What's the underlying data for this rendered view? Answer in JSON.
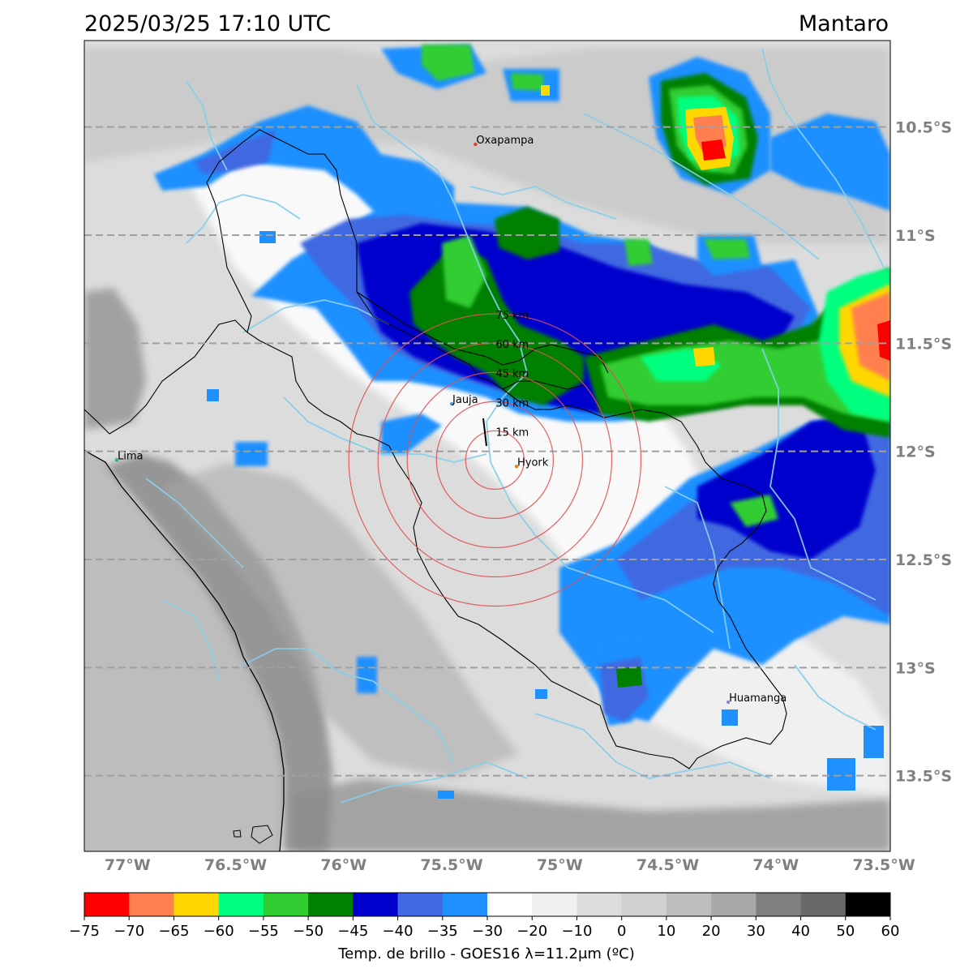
{
  "header": {
    "timestamp": "2025/03/25 17:10 UTC",
    "region": "Mantaro"
  },
  "map": {
    "lon_range": [
      -77.2,
      -73.47
    ],
    "lat_range": [
      -13.85,
      -10.1
    ],
    "lon_ticks": [
      {
        "value": -77.0,
        "label": "77°W"
      },
      {
        "value": -76.5,
        "label": "76.5°W"
      },
      {
        "value": -76.0,
        "label": "76°W"
      },
      {
        "value": -75.5,
        "label": "75.5°W"
      },
      {
        "value": -75.0,
        "label": "75°W"
      },
      {
        "value": -74.5,
        "label": "74.5°W"
      },
      {
        "value": -74.0,
        "label": "74°W"
      },
      {
        "value": -73.5,
        "label": "73.5°W"
      }
    ],
    "lat_ticks": [
      {
        "value": -10.5,
        "label": "10.5°S"
      },
      {
        "value": -11.0,
        "label": "11°S"
      },
      {
        "value": -11.5,
        "label": "11.5°S"
      },
      {
        "value": -12.0,
        "label": "12°S"
      },
      {
        "value": -12.5,
        "label": "12.5°S"
      },
      {
        "value": -13.0,
        "label": "13°S"
      },
      {
        "value": -13.5,
        "label": "13.5°S"
      }
    ],
    "cities": [
      {
        "name": "Oxapampa",
        "lon": -75.39,
        "lat": -10.58,
        "color": "#e04020"
      },
      {
        "name": "Jauja",
        "lon": -75.5,
        "lat": -11.78,
        "color": "#40a0e0"
      },
      {
        "name": "Lima",
        "lon": -77.05,
        "lat": -12.04,
        "color": "#2ab0a0"
      },
      {
        "name": "Hyork",
        "lon": -75.2,
        "lat": -12.07,
        "color": "#e08020"
      },
      {
        "name": "Huamanga",
        "lon": -74.22,
        "lat": -13.16,
        "color": "#9080d0"
      }
    ],
    "radar": {
      "center_lon": -75.3,
      "center_lat": -12.04,
      "rings": [
        {
          "km": 15,
          "label": "15 km"
        },
        {
          "km": 30,
          "label": "30 km"
        },
        {
          "km": 45,
          "label": "45 km"
        },
        {
          "km": 60,
          "label": "60 km"
        },
        {
          "km": 75,
          "label": "75 km"
        }
      ],
      "ring_color": "#e05050"
    }
  },
  "colorbar": {
    "label": "Temp. de brillo - GOES16 λ=11.2μm (ºC)",
    "bins": [
      {
        "from": -75,
        "to": -70,
        "color": "#ff0000"
      },
      {
        "from": -70,
        "to": -65,
        "color": "#ff7f50"
      },
      {
        "from": -65,
        "to": -60,
        "color": "#ffd700"
      },
      {
        "from": -60,
        "to": -55,
        "color": "#00ff7f"
      },
      {
        "from": -55,
        "to": -50,
        "color": "#32cd32"
      },
      {
        "from": -50,
        "to": -45,
        "color": "#008000"
      },
      {
        "from": -45,
        "to": -40,
        "color": "#0000cd"
      },
      {
        "from": -40,
        "to": -35,
        "color": "#4169e1"
      },
      {
        "from": -35,
        "to": -30,
        "color": "#1e90ff"
      },
      {
        "from": -30,
        "to": -20,
        "color": "#ffffff"
      },
      {
        "from": -20,
        "to": -10,
        "color": "#f0f0f0"
      },
      {
        "from": -10,
        "to": 0,
        "color": "#dcdcdc"
      },
      {
        "from": 0,
        "to": 10,
        "color": "#d0d0d0"
      },
      {
        "from": 10,
        "to": 20,
        "color": "#bebebe"
      },
      {
        "from": 20,
        "to": 30,
        "color": "#a9a9a9"
      },
      {
        "from": 30,
        "to": 40,
        "color": "#808080"
      },
      {
        "from": 40,
        "to": 50,
        "color": "#696969"
      },
      {
        "from": 50,
        "to": 60,
        "color": "#000000"
      }
    ],
    "tick_labels": [
      "−75",
      "−70",
      "−65",
      "−60",
      "−55",
      "−50",
      "−45",
      "−40",
      "−35",
      "−30",
      "−20",
      "−10",
      "0",
      "10",
      "20",
      "30",
      "40",
      "50",
      "60"
    ]
  }
}
